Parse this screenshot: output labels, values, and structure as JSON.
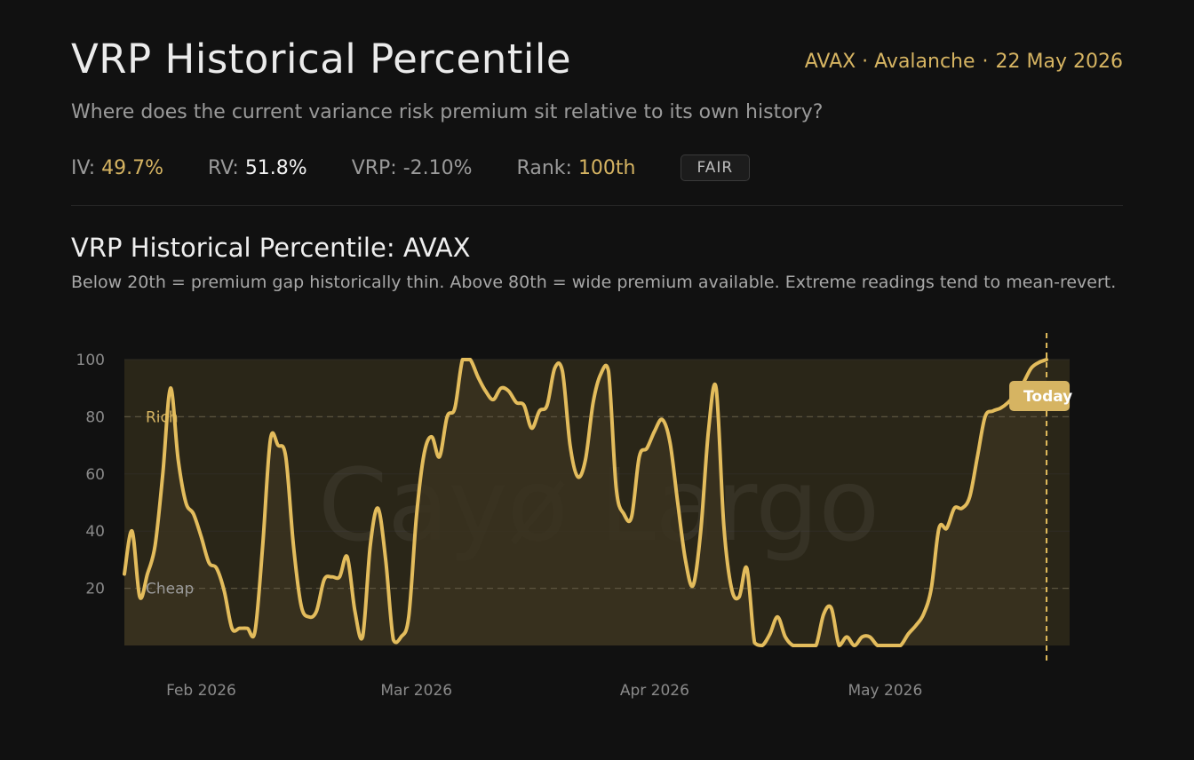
{
  "header": {
    "title": "VRP Historical Percentile",
    "asset": "AVAX · Avalanche",
    "separator": "·",
    "date": "22 May 2026",
    "subtitle": "Where does the current variance risk premium sit relative to its own history?"
  },
  "stats": {
    "iv_label": "IV:",
    "iv_value": "49.7%",
    "rv_label": "RV:",
    "rv_value": "51.8%",
    "vrp_label": "VRP:",
    "vrp_value": "-2.10%",
    "rank_label": "Rank:",
    "rank_value": "100th",
    "badge": "FAIR"
  },
  "colors": {
    "accent": "#d6b462",
    "line": "#e3bc5c",
    "fill": "#3a3320",
    "band": "#2a2618",
    "background": "#111111"
  },
  "chart_data": {
    "type": "line",
    "title": "VRP Historical Percentile: AVAX",
    "subtitle": "Below 20th = premium gap historically thin. Above 80th = wide premium available. Extreme readings tend to mean-revert.",
    "watermark": "Cayø Largo",
    "ylim": [
      0,
      100
    ],
    "yticks": [
      20,
      40,
      60,
      80,
      100
    ],
    "grid": true,
    "x_tick_labels": [
      {
        "date": "2026-02-01",
        "label": "Feb 2026"
      },
      {
        "date": "2026-03-01",
        "label": "Mar 2026"
      },
      {
        "date": "2026-04-01",
        "label": "Apr 2026"
      },
      {
        "date": "2026-05-01",
        "label": "May 2026"
      }
    ],
    "xlim": [
      "2026-01-22",
      "2026-05-25"
    ],
    "thresholds": [
      {
        "value": 80,
        "label": "Rich"
      },
      {
        "value": 20,
        "label": "Cheap"
      }
    ],
    "today": {
      "date": "2026-05-22",
      "label": "Today"
    },
    "series": [
      {
        "points": [
          [
            "2026-01-22",
            25
          ],
          [
            "2026-01-23",
            40
          ],
          [
            "2026-01-24",
            17
          ],
          [
            "2026-01-25",
            25
          ],
          [
            "2026-01-26",
            35
          ],
          [
            "2026-01-27",
            60
          ],
          [
            "2026-01-28",
            90
          ],
          [
            "2026-01-29",
            65
          ],
          [
            "2026-01-30",
            50
          ],
          [
            "2026-01-31",
            46
          ],
          [
            "2026-02-01",
            38
          ],
          [
            "2026-02-02",
            29
          ],
          [
            "2026-02-03",
            27
          ],
          [
            "2026-02-04",
            19
          ],
          [
            "2026-02-05",
            6
          ],
          [
            "2026-02-06",
            6
          ],
          [
            "2026-02-07",
            6
          ],
          [
            "2026-02-08",
            5
          ],
          [
            "2026-02-09",
            35
          ],
          [
            "2026-02-10",
            72
          ],
          [
            "2026-02-11",
            70
          ],
          [
            "2026-02-12",
            66
          ],
          [
            "2026-02-13",
            35
          ],
          [
            "2026-02-14",
            14
          ],
          [
            "2026-02-15",
            10
          ],
          [
            "2026-02-16",
            12
          ],
          [
            "2026-02-17",
            23
          ],
          [
            "2026-02-18",
            24
          ],
          [
            "2026-02-19",
            24
          ],
          [
            "2026-02-20",
            31
          ],
          [
            "2026-02-21",
            12
          ],
          [
            "2026-02-22",
            3
          ],
          [
            "2026-02-23",
            35
          ],
          [
            "2026-02-24",
            48
          ],
          [
            "2026-02-25",
            30
          ],
          [
            "2026-02-26",
            2
          ],
          [
            "2026-02-27",
            3
          ],
          [
            "2026-02-28",
            10
          ],
          [
            "2026-03-01",
            45
          ],
          [
            "2026-03-02",
            67
          ],
          [
            "2026-03-03",
            73
          ],
          [
            "2026-03-04",
            66
          ],
          [
            "2026-03-05",
            80
          ],
          [
            "2026-03-06",
            83
          ],
          [
            "2026-03-07",
            100
          ],
          [
            "2026-03-08",
            100
          ],
          [
            "2026-03-09",
            94
          ],
          [
            "2026-03-10",
            89
          ],
          [
            "2026-03-11",
            86
          ],
          [
            "2026-03-12",
            90
          ],
          [
            "2026-03-13",
            89
          ],
          [
            "2026-03-14",
            85
          ],
          [
            "2026-03-15",
            84
          ],
          [
            "2026-03-16",
            76
          ],
          [
            "2026-03-17",
            82
          ],
          [
            "2026-03-18",
            84
          ],
          [
            "2026-03-19",
            97
          ],
          [
            "2026-03-20",
            96
          ],
          [
            "2026-03-21",
            70
          ],
          [
            "2026-03-22",
            59
          ],
          [
            "2026-03-23",
            65
          ],
          [
            "2026-03-24",
            85
          ],
          [
            "2026-03-25",
            95
          ],
          [
            "2026-03-26",
            96
          ],
          [
            "2026-03-27",
            55
          ],
          [
            "2026-03-28",
            46
          ],
          [
            "2026-03-29",
            45
          ],
          [
            "2026-03-30",
            66
          ],
          [
            "2026-03-31",
            69
          ],
          [
            "2026-04-01",
            75
          ],
          [
            "2026-04-02",
            79
          ],
          [
            "2026-04-03",
            71
          ],
          [
            "2026-04-04",
            50
          ],
          [
            "2026-04-05",
            30
          ],
          [
            "2026-04-06",
            21
          ],
          [
            "2026-04-07",
            40
          ],
          [
            "2026-04-08",
            75
          ],
          [
            "2026-04-09",
            90
          ],
          [
            "2026-04-10",
            42
          ],
          [
            "2026-04-11",
            20
          ],
          [
            "2026-04-12",
            17
          ],
          [
            "2026-04-13",
            27
          ],
          [
            "2026-04-14",
            1
          ],
          [
            "2026-04-15",
            0
          ],
          [
            "2026-04-16",
            4
          ],
          [
            "2026-04-17",
            10
          ],
          [
            "2026-04-18",
            3
          ],
          [
            "2026-04-19",
            0
          ],
          [
            "2026-04-20",
            0
          ],
          [
            "2026-04-21",
            0
          ],
          [
            "2026-04-22",
            0
          ],
          [
            "2026-04-23",
            11
          ],
          [
            "2026-04-24",
            13
          ],
          [
            "2026-04-25",
            0
          ],
          [
            "2026-04-26",
            3
          ],
          [
            "2026-04-27",
            0
          ],
          [
            "2026-04-28",
            3
          ],
          [
            "2026-04-29",
            3
          ],
          [
            "2026-04-30",
            0
          ],
          [
            "2026-05-01",
            0
          ],
          [
            "2026-05-02",
            0
          ],
          [
            "2026-05-03",
            0
          ],
          [
            "2026-05-04",
            4
          ],
          [
            "2026-05-05",
            7
          ],
          [
            "2026-05-06",
            11
          ],
          [
            "2026-05-07",
            20
          ],
          [
            "2026-05-08",
            41
          ],
          [
            "2026-05-09",
            41
          ],
          [
            "2026-05-10",
            48
          ],
          [
            "2026-05-11",
            48
          ],
          [
            "2026-05-12",
            52
          ],
          [
            "2026-05-13",
            66
          ],
          [
            "2026-05-14",
            80
          ],
          [
            "2026-05-15",
            82
          ],
          [
            "2026-05-16",
            83
          ],
          [
            "2026-05-17",
            85
          ],
          [
            "2026-05-18",
            88
          ],
          [
            "2026-05-19",
            92
          ],
          [
            "2026-05-20",
            97
          ],
          [
            "2026-05-21",
            99
          ],
          [
            "2026-05-22",
            100
          ]
        ]
      }
    ]
  }
}
